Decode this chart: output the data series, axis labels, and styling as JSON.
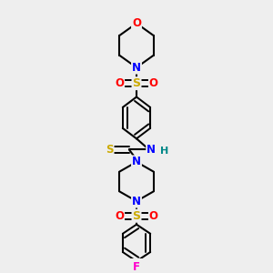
{
  "background_color": "#eeeeee",
  "atom_colors": {
    "C": "#000000",
    "N": "#0000ff",
    "O": "#ff0000",
    "S": "#ccaa00",
    "F": "#ff00cc",
    "H": "#008888"
  },
  "bond_color": "#000000",
  "figsize": [
    3.0,
    3.0
  ],
  "dpi": 100,
  "xlim": [
    0.2,
    0.8
  ],
  "ylim": [
    0.0,
    1.05
  ]
}
